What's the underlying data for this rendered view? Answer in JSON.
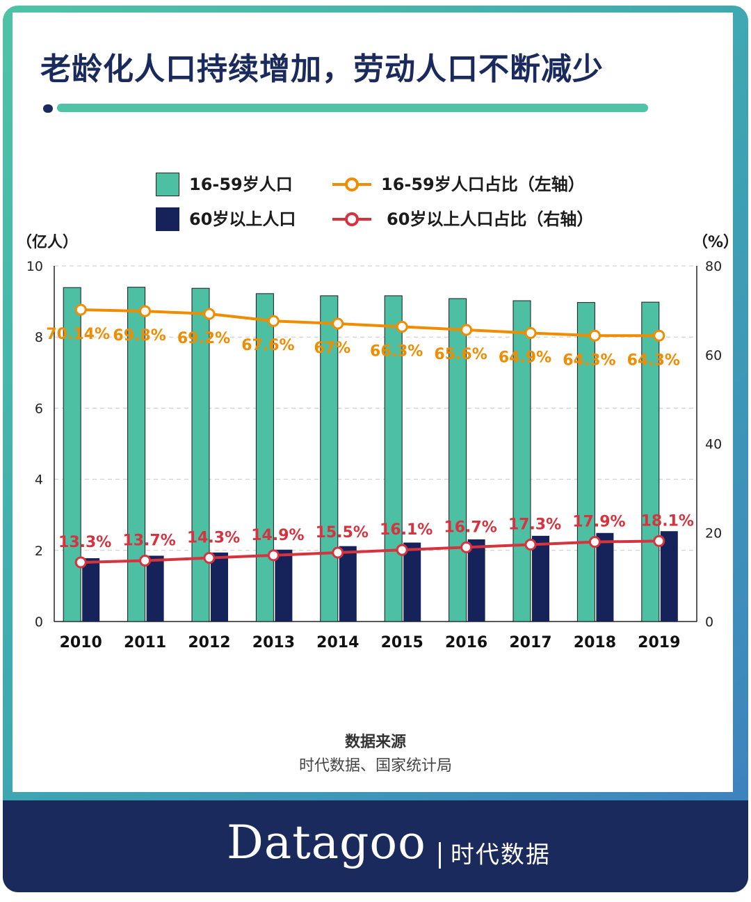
{
  "title": "老龄化人口持续增加，劳动人口不断减少",
  "legend": {
    "working_age_bars": "16-59岁人口",
    "elderly_bars": "60岁以上人口",
    "working_age_share": "16-59岁人口占比（左轴）",
    "elderly_share": "60岁以上人口占比（右轴）"
  },
  "axes": {
    "left_unit": "（亿人）",
    "right_unit": "（%）"
  },
  "source": {
    "title": "数据来源",
    "text": "时代数据、国家统计局"
  },
  "brand": {
    "name": "Datagoo",
    "chinese": "时代数据"
  },
  "colors": {
    "working_age_bar": "#4dbfa3",
    "elderly_bar": "#16235a",
    "working_age_line": "#f08c00",
    "elderly_line": "#d6333f",
    "title": "#1b2a5c"
  },
  "chart_data": {
    "type": "bar",
    "categories": [
      "2010",
      "2011",
      "2012",
      "2013",
      "2014",
      "2015",
      "2016",
      "2017",
      "2018",
      "2019"
    ],
    "series": [
      {
        "name": "16-59岁人口",
        "type": "bar",
        "axis": "left",
        "values": [
          9.39,
          9.4,
          9.37,
          9.22,
          9.16,
          9.16,
          9.08,
          9.02,
          8.97,
          8.98
        ]
      },
      {
        "name": "60岁以上人口",
        "type": "bar",
        "axis": "left",
        "values": [
          1.78,
          1.85,
          1.94,
          2.02,
          2.12,
          2.22,
          2.31,
          2.41,
          2.49,
          2.54
        ]
      },
      {
        "name": "16-59岁人口占比（左轴）",
        "type": "line",
        "axis": "right",
        "values": [
          70.14,
          69.8,
          69.2,
          67.6,
          67,
          66.3,
          65.6,
          64.9,
          64.3,
          64.3
        ],
        "labels": [
          "70.14%",
          "69.8%",
          "69.2%",
          "67.6%",
          "67%",
          "66.3%",
          "65.6%",
          "64.9%",
          "64.3%",
          "64.3%"
        ]
      },
      {
        "name": "60岁以上人口占比（右轴）",
        "type": "line",
        "axis": "right",
        "values": [
          13.3,
          13.7,
          14.3,
          14.9,
          15.5,
          16.1,
          16.7,
          17.3,
          17.9,
          18.1
        ],
        "labels": [
          "13.3%",
          "13.7%",
          "14.3%",
          "14.9%",
          "15.5%",
          "16.1%",
          "16.7%",
          "17.3%",
          "17.9%",
          "18.1%"
        ]
      }
    ],
    "left_axis": {
      "ticks": [
        "0",
        "2",
        "4",
        "6",
        "8",
        "10"
      ],
      "ylim": [
        0,
        10
      ]
    },
    "right_axis": {
      "ticks": [
        "0",
        "20",
        "40",
        "60",
        "80"
      ],
      "ylim": [
        0,
        80
      ]
    },
    "grid": true
  }
}
